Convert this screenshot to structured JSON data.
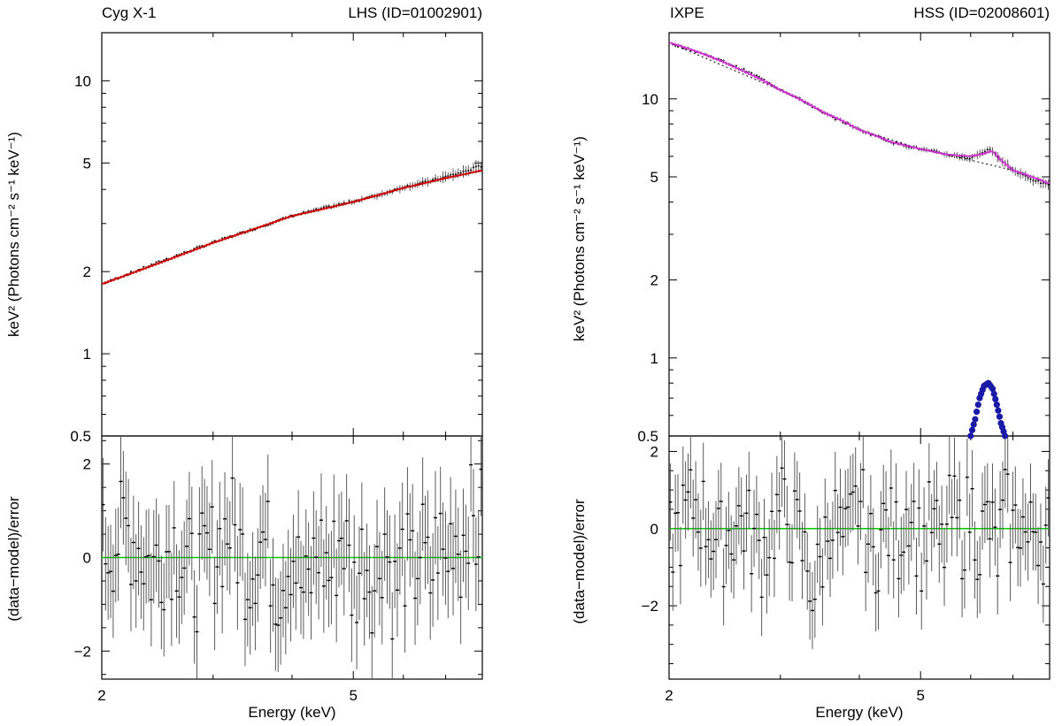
{
  "chart_data": [
    {
      "type": "line",
      "id": "left-spectrum",
      "title_left": "Cyg X-1",
      "title_right": "LHS (ID=01002901)",
      "xlabel": "Energy (keV)",
      "ylabel": "keV² (Photons cm⁻² s⁻¹ keV⁻¹)",
      "xscale": "log",
      "yscale": "log",
      "xlim": [
        2,
        8
      ],
      "ylim": [
        0.5,
        15
      ],
      "x_ticks": [
        {
          "value": 2,
          "label": "2"
        },
        {
          "value": 5,
          "label": "5"
        }
      ],
      "y_ticks": [
        {
          "value": 0.5,
          "label": "0.5"
        },
        {
          "value": 1,
          "label": "1"
        },
        {
          "value": 2,
          "label": "2"
        },
        {
          "value": 5,
          "label": "5"
        },
        {
          "value": 10,
          "label": "10"
        }
      ],
      "model": {
        "name": "best-fit model",
        "color": "#cc0000",
        "points": [
          [
            2.0,
            1.8
          ],
          [
            3.0,
            2.55
          ],
          [
            4.0,
            3.2
          ],
          [
            5.0,
            3.6
          ],
          [
            6.0,
            4.05
          ],
          [
            7.0,
            4.4
          ],
          [
            8.0,
            4.7
          ]
        ]
      },
      "data_series": {
        "name": "IXPE data",
        "color": "#000000",
        "points": [
          [
            2.0,
            1.8
          ],
          [
            2.5,
            2.2
          ],
          [
            3.0,
            2.56
          ],
          [
            3.5,
            2.88
          ],
          [
            4.0,
            3.2
          ],
          [
            4.5,
            3.42
          ],
          [
            5.0,
            3.62
          ],
          [
            5.5,
            3.82
          ],
          [
            6.0,
            4.08
          ],
          [
            6.5,
            4.25
          ],
          [
            7.0,
            4.45
          ],
          [
            7.5,
            4.65
          ],
          [
            8.0,
            4.9
          ]
        ]
      },
      "residuals": {
        "ylabel": "(data−model)/error",
        "ylim": [
          -2.6,
          2.6
        ],
        "y_ticks": [
          {
            "value": -2,
            "label": "−2"
          },
          {
            "value": 0,
            "label": "0"
          },
          {
            "value": 2,
            "label": "2"
          }
        ],
        "zero_line_color": "#00cc00",
        "points": [
          [
            2.0,
            0.3
          ],
          [
            2.2,
            1.0
          ],
          [
            2.4,
            -0.4
          ],
          [
            2.6,
            0.6
          ],
          [
            2.8,
            -0.8
          ],
          [
            3.0,
            0.2
          ],
          [
            3.2,
            1.2
          ],
          [
            3.4,
            -0.5
          ],
          [
            3.6,
            0.8
          ],
          [
            3.8,
            -1.0
          ],
          [
            4.0,
            0.4
          ],
          [
            4.2,
            -1.6
          ],
          [
            4.4,
            0.5
          ],
          [
            4.6,
            -0.7
          ],
          [
            4.8,
            1.1
          ],
          [
            5.0,
            -1.2
          ],
          [
            5.2,
            0.3
          ],
          [
            5.4,
            -1.0
          ],
          [
            5.6,
            0.9
          ],
          [
            5.8,
            -1.4
          ],
          [
            6.0,
            0.1
          ],
          [
            6.2,
            -0.8
          ],
          [
            6.4,
            0.6
          ],
          [
            6.6,
            -1.1
          ],
          [
            6.8,
            0.8
          ],
          [
            7.0,
            -0.4
          ],
          [
            7.2,
            1.3
          ],
          [
            7.4,
            0.2
          ],
          [
            7.6,
            1.8
          ],
          [
            7.8,
            0.7
          ],
          [
            8.0,
            1.5
          ]
        ]
      }
    },
    {
      "type": "line",
      "id": "right-spectrum",
      "title_left": "IXPE",
      "title_right": "HSS (ID=02008601)",
      "xlabel": "Energy (keV)",
      "ylabel": "keV² (Photons cm⁻² s⁻¹ keV⁻¹)",
      "xscale": "log",
      "yscale": "log",
      "xlim": [
        2,
        8
      ],
      "ylim": [
        0.5,
        18
      ],
      "x_ticks": [
        {
          "value": 2,
          "label": "2"
        },
        {
          "value": 5,
          "label": "5"
        }
      ],
      "y_ticks": [
        {
          "value": 0.5,
          "label": "0.5"
        },
        {
          "value": 1,
          "label": "1"
        },
        {
          "value": 2,
          "label": "2"
        },
        {
          "value": 5,
          "label": "5"
        },
        {
          "value": 10,
          "label": "10"
        }
      ],
      "model": {
        "name": "best-fit model",
        "color": "#cc33cc",
        "points": [
          [
            2.0,
            16.5
          ],
          [
            2.3,
            14.7
          ],
          [
            2.6,
            12.9
          ],
          [
            3.0,
            10.8
          ],
          [
            3.5,
            8.9
          ],
          [
            4.0,
            7.6
          ],
          [
            4.5,
            6.8
          ],
          [
            5.0,
            6.4
          ],
          [
            5.5,
            6.1
          ],
          [
            6.0,
            6.0
          ],
          [
            6.3,
            6.15
          ],
          [
            6.5,
            6.3
          ],
          [
            6.7,
            5.8
          ],
          [
            7.0,
            5.3
          ],
          [
            7.5,
            5.0
          ],
          [
            8.0,
            4.7
          ]
        ]
      },
      "continuum": {
        "name": "continuum component",
        "color": "#000000",
        "points": [
          [
            2.0,
            16.5
          ],
          [
            3.0,
            10.8
          ],
          [
            4.0,
            7.6
          ],
          [
            5.0,
            6.4
          ],
          [
            6.0,
            5.8
          ],
          [
            7.0,
            5.3
          ],
          [
            8.0,
            4.7
          ]
        ]
      },
      "line_component": {
        "name": "Gaussian line",
        "color": "#1a1aa6",
        "points": [
          [
            6.0,
            0.5
          ],
          [
            6.1,
            0.58
          ],
          [
            6.2,
            0.7
          ],
          [
            6.3,
            0.78
          ],
          [
            6.4,
            0.8
          ],
          [
            6.5,
            0.76
          ],
          [
            6.6,
            0.66
          ],
          [
            6.7,
            0.56
          ],
          [
            6.8,
            0.5
          ]
        ]
      },
      "data_series": {
        "name": "IXPE data",
        "color": "#000000",
        "points": [
          [
            2.0,
            16.4
          ],
          [
            2.5,
            13.6
          ],
          [
            3.0,
            10.9
          ],
          [
            3.5,
            8.8
          ],
          [
            4.0,
            7.6
          ],
          [
            4.5,
            6.8
          ],
          [
            5.0,
            6.4
          ],
          [
            5.5,
            6.1
          ],
          [
            6.0,
            5.9
          ],
          [
            6.4,
            6.4
          ],
          [
            7.0,
            5.3
          ],
          [
            7.5,
            4.9
          ],
          [
            8.0,
            4.6
          ]
        ]
      },
      "residuals": {
        "ylabel": "(data−model)/error",
        "ylim": [
          -3.9,
          2.4
        ],
        "y_ticks": [
          {
            "value": -2,
            "label": "−2"
          },
          {
            "value": 0,
            "label": "0"
          },
          {
            "value": 2,
            "label": "2"
          }
        ],
        "zero_line_color": "#00cc00",
        "points": [
          [
            2.0,
            -0.6
          ],
          [
            2.2,
            1.2
          ],
          [
            2.4,
            -0.8
          ],
          [
            2.6,
            0.5
          ],
          [
            2.8,
            -1.1
          ],
          [
            3.0,
            0.9
          ],
          [
            3.2,
            -0.3
          ],
          [
            3.4,
            -2.8
          ],
          [
            3.6,
            0.7
          ],
          [
            3.8,
            -0.9
          ],
          [
            4.0,
            1.4
          ],
          [
            4.2,
            -1.5
          ],
          [
            4.4,
            0.3
          ],
          [
            4.6,
            -0.6
          ],
          [
            4.8,
            1.3
          ],
          [
            5.0,
            -1.0
          ],
          [
            5.2,
            0.4
          ],
          [
            5.4,
            -1.2
          ],
          [
            5.6,
            0.8
          ],
          [
            5.8,
            -0.4
          ],
          [
            6.0,
            1.0
          ],
          [
            6.2,
            -0.7
          ],
          [
            6.4,
            0.5
          ],
          [
            6.6,
            -1.3
          ],
          [
            6.8,
            0.9
          ],
          [
            7.0,
            -0.2
          ],
          [
            7.2,
            0.6
          ],
          [
            7.4,
            -0.8
          ],
          [
            7.6,
            0.4
          ],
          [
            7.8,
            -0.5
          ],
          [
            8.0,
            0.2
          ]
        ]
      }
    }
  ]
}
